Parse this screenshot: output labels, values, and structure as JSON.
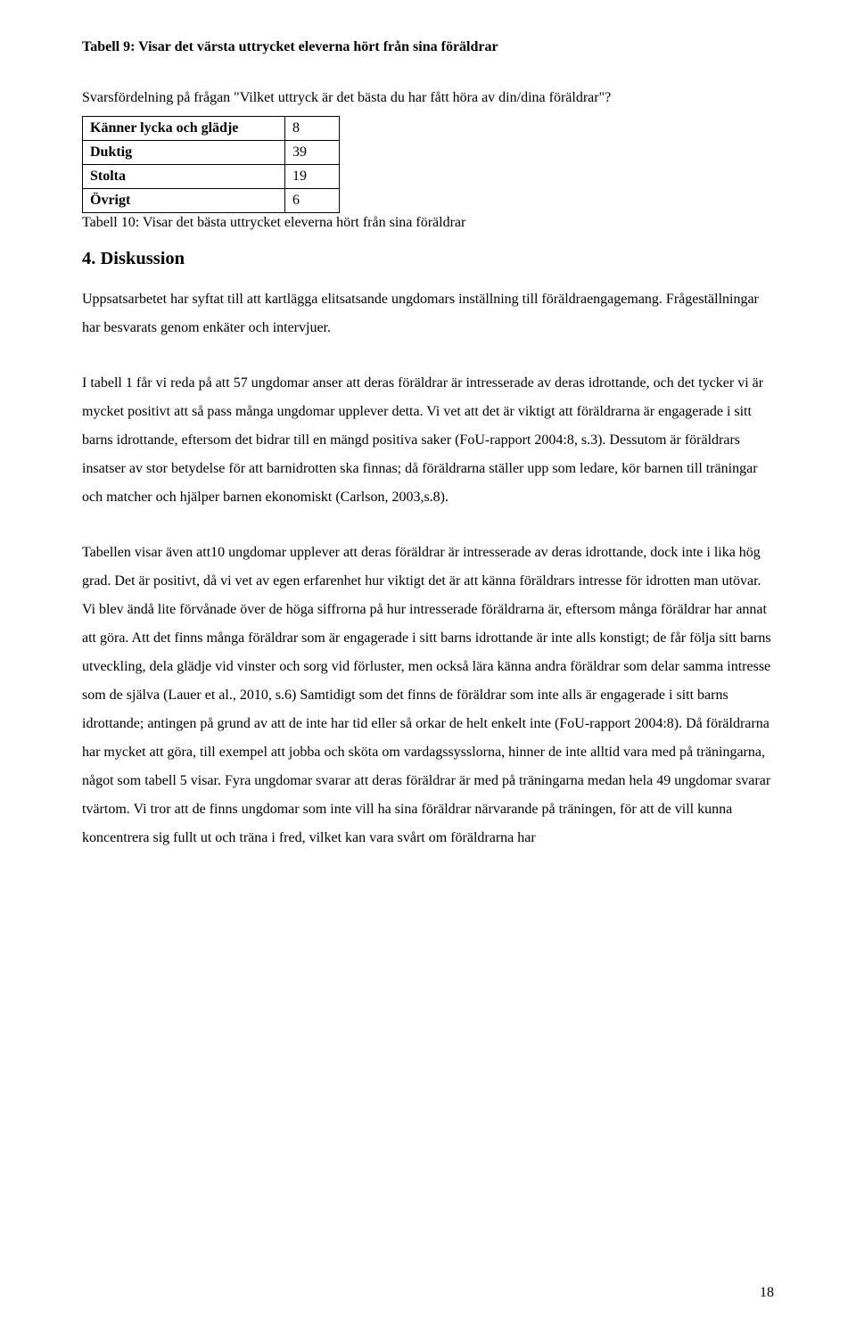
{
  "tabell9_caption": "Tabell 9: Visar det värsta uttrycket eleverna hört från sina föräldrar",
  "intro_text": "Svarsfördelning på frågan \"Vilket uttryck är det bästa du har fått höra av din/dina föräldrar\"?",
  "table10": {
    "rows": [
      {
        "label": "Känner lycka och glädje",
        "value": "8"
      },
      {
        "label": "Duktig",
        "value": "39"
      },
      {
        "label": "Stolta",
        "value": "19"
      },
      {
        "label": "Övrigt",
        "value": "6"
      }
    ],
    "caption": "Tabell 10: Visar det bästa uttrycket eleverna hört från sina föräldrar"
  },
  "section_heading": "4. Diskussion",
  "para1": "Uppsatsarbetet har syftat till att kartlägga elitsatsande ungdomars inställning till föräldraengagemang. Frågeställningar har besvarats genom enkäter och intervjuer.",
  "para2": "I tabell 1 får vi reda på att 57 ungdomar anser att deras föräldrar är intresserade av deras idrottande, och det tycker vi är mycket positivt att så pass många ungdomar upplever detta. Vi vet att det är viktigt att föräldrarna är engagerade i sitt barns idrottande, eftersom det bidrar till en mängd positiva saker (FoU-rapport 2004:8, s.3). Dessutom är föräldrars insatser av stor betydelse för att barnidrotten ska finnas; då föräldrarna ställer upp som ledare, kör barnen till träningar och matcher och hjälper barnen ekonomiskt (Carlson, 2003,s.8).",
  "para3": "Tabellen visar även att10 ungdomar upplever att deras föräldrar är intresserade av deras idrottande, dock inte i lika hög grad. Det är positivt, då vi vet av egen erfarenhet hur viktigt det är att känna föräldrars intresse för idrotten man utövar. Vi blev ändå lite förvånade över de höga siffrorna på hur intresserade föräldrarna är, eftersom många föräldrar har annat att göra. Att det finns många föräldrar som är engagerade i sitt barns idrottande är inte alls konstigt; de får följa sitt barns utveckling, dela glädje vid vinster och sorg vid förluster, men också lära känna andra föräldrar som delar samma intresse som de själva (Lauer et al., 2010, s.6) Samtidigt som det finns de föräldrar som inte alls är engagerade i sitt barns idrottande; antingen på grund av att de inte har tid eller så orkar de helt enkelt inte (FoU-rapport 2004:8). Då föräldrarna har mycket att göra, till exempel att jobba och sköta om vardagssysslorna, hinner de inte alltid vara med på träningarna, något som tabell 5 visar. Fyra ungdomar svarar att deras föräldrar är med på träningarna medan hela 49 ungdomar svarar tvärtom. Vi tror att de finns ungdomar som inte vill ha sina föräldrar närvarande på träningen, för att de vill kunna koncentrera sig fullt ut och träna i fred, vilket kan vara svårt om föräldrarna har",
  "page_number": "18"
}
